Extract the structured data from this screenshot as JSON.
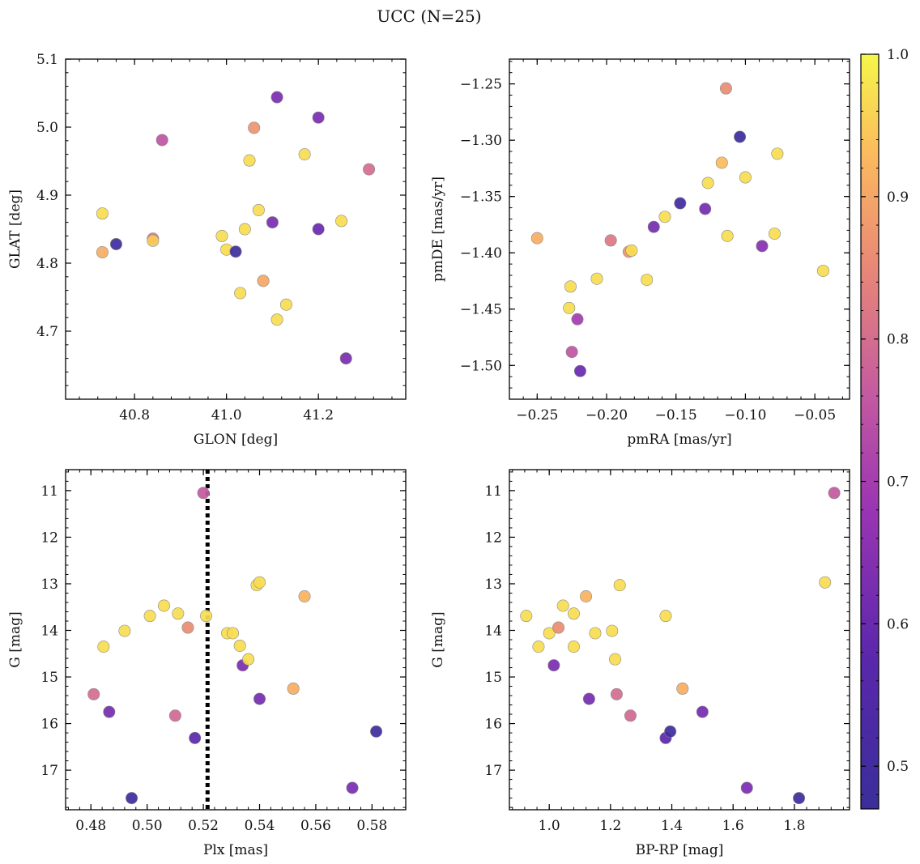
{
  "figure": {
    "title": "UCC (N=25)"
  },
  "colorbar": {
    "range": [
      0.47,
      1.0
    ],
    "ticks": [
      0.5,
      0.6,
      0.7,
      0.8,
      0.9,
      1.0
    ],
    "tick_labels": [
      "0.5",
      "0.6",
      "0.7",
      "0.8",
      "0.9",
      "1.0"
    ],
    "colormap": "plasma"
  },
  "chart_data": [
    {
      "type": "scatter",
      "xlabel": "GLON [deg]",
      "ylabel": "GLAT [deg]",
      "xlim": [
        40.65,
        41.39
      ],
      "ylim": [
        4.6,
        5.1
      ],
      "xticks": [
        40.8,
        41.0,
        41.2
      ],
      "xtick_labels": [
        "40.8",
        "41.0",
        "41.2"
      ],
      "yticks": [
        4.7,
        4.8,
        4.9,
        5.0,
        5.1
      ],
      "ytick_labels": [
        "4.7",
        "4.8",
        "4.9",
        "5.0",
        "5.1"
      ],
      "points": [
        {
          "x": 40.73,
          "y": 4.873,
          "c": 0.97
        },
        {
          "x": 40.73,
          "y": 4.816,
          "c": 0.91
        },
        {
          "x": 40.76,
          "y": 4.828,
          "c": 0.49
        },
        {
          "x": 40.84,
          "y": 4.836,
          "c": 0.82
        },
        {
          "x": 40.84,
          "y": 4.833,
          "c": 0.95
        },
        {
          "x": 40.86,
          "y": 4.981,
          "c": 0.75
        },
        {
          "x": 40.99,
          "y": 4.84,
          "c": 0.97
        },
        {
          "x": 41.0,
          "y": 4.82,
          "c": 0.97
        },
        {
          "x": 41.02,
          "y": 4.817,
          "c": 0.49
        },
        {
          "x": 41.03,
          "y": 4.756,
          "c": 0.97
        },
        {
          "x": 41.04,
          "y": 4.85,
          "c": 0.97
        },
        {
          "x": 41.05,
          "y": 4.951,
          "c": 0.97
        },
        {
          "x": 41.06,
          "y": 4.999,
          "c": 0.87
        },
        {
          "x": 41.07,
          "y": 4.878,
          "c": 0.97
        },
        {
          "x": 41.08,
          "y": 4.774,
          "c": 0.9
        },
        {
          "x": 41.1,
          "y": 4.86,
          "c": 0.63
        },
        {
          "x": 41.11,
          "y": 5.044,
          "c": 0.63
        },
        {
          "x": 41.11,
          "y": 4.717,
          "c": 0.97
        },
        {
          "x": 41.13,
          "y": 4.739,
          "c": 0.97
        },
        {
          "x": 41.17,
          "y": 4.96,
          "c": 0.97
        },
        {
          "x": 41.2,
          "y": 5.014,
          "c": 0.63
        },
        {
          "x": 41.2,
          "y": 4.85,
          "c": 0.6
        },
        {
          "x": 41.25,
          "y": 4.862,
          "c": 0.97
        },
        {
          "x": 41.26,
          "y": 4.66,
          "c": 0.63
        },
        {
          "x": 41.31,
          "y": 4.938,
          "c": 0.8
        }
      ]
    },
    {
      "type": "scatter",
      "xlabel": "pmRA [mas/yr]",
      "ylabel": "pmDE [mas/yr]",
      "xlim": [
        -0.27,
        -0.025
      ],
      "ylim": [
        -1.53,
        -1.228
      ],
      "xticks": [
        -0.25,
        -0.2,
        -0.15,
        -0.1,
        -0.05
      ],
      "xtick_labels": [
        "−0.25",
        "−0.20",
        "−0.15",
        "−0.10",
        "−0.05"
      ],
      "yticks": [
        -1.5,
        -1.45,
        -1.4,
        -1.35,
        -1.3,
        -1.25
      ],
      "ytick_labels": [
        "−1.50",
        "−1.45",
        "−1.40",
        "−1.35",
        "−1.30",
        "−1.25"
      ],
      "points": [
        {
          "x": -0.25,
          "y": -1.387,
          "c": 0.91
        },
        {
          "x": -0.226,
          "y": -1.43,
          "c": 0.97
        },
        {
          "x": -0.227,
          "y": -1.449,
          "c": 0.97
        },
        {
          "x": -0.225,
          "y": -1.488,
          "c": 0.75
        },
        {
          "x": -0.221,
          "y": -1.459,
          "c": 0.7
        },
        {
          "x": -0.219,
          "y": -1.505,
          "c": 0.6
        },
        {
          "x": -0.207,
          "y": -1.423,
          "c": 0.97
        },
        {
          "x": -0.197,
          "y": -1.389,
          "c": 0.82
        },
        {
          "x": -0.184,
          "y": -1.399,
          "c": 0.87
        },
        {
          "x": -0.182,
          "y": -1.398,
          "c": 0.97
        },
        {
          "x": -0.171,
          "y": -1.424,
          "c": 0.97
        },
        {
          "x": -0.166,
          "y": -1.377,
          "c": 0.62
        },
        {
          "x": -0.158,
          "y": -1.368,
          "c": 0.97
        },
        {
          "x": -0.147,
          "y": -1.356,
          "c": 0.5
        },
        {
          "x": -0.129,
          "y": -1.361,
          "c": 0.62
        },
        {
          "x": -0.127,
          "y": -1.338,
          "c": 0.97
        },
        {
          "x": -0.117,
          "y": -1.32,
          "c": 0.93
        },
        {
          "x": -0.114,
          "y": -1.254,
          "c": 0.86
        },
        {
          "x": -0.113,
          "y": -1.385,
          "c": 0.97
        },
        {
          "x": -0.104,
          "y": -1.297,
          "c": 0.48
        },
        {
          "x": -0.1,
          "y": -1.333,
          "c": 0.97
        },
        {
          "x": -0.088,
          "y": -1.394,
          "c": 0.65
        },
        {
          "x": -0.079,
          "y": -1.383,
          "c": 0.97
        },
        {
          "x": -0.077,
          "y": -1.312,
          "c": 0.97
        },
        {
          "x": -0.044,
          "y": -1.416,
          "c": 0.97
        }
      ]
    },
    {
      "type": "scatter",
      "xlabel": "Plx [mas]",
      "ylabel": "G [mag]",
      "xlim": [
        0.471,
        0.592
      ],
      "ylim": [
        17.85,
        10.55
      ],
      "y_inverted": true,
      "xticks": [
        0.48,
        0.5,
        0.52,
        0.54,
        0.56,
        0.58
      ],
      "xtick_labels": [
        "0.48",
        "0.50",
        "0.52",
        "0.54",
        "0.56",
        "0.58"
      ],
      "yticks": [
        11,
        12,
        13,
        14,
        15,
        16,
        17
      ],
      "ytick_labels": [
        "11",
        "12",
        "13",
        "14",
        "15",
        "16",
        "17"
      ],
      "vline": {
        "x": 0.5215,
        "style": "dotted"
      },
      "points": [
        {
          "x": 0.481,
          "y": 15.37,
          "c": 0.8
        },
        {
          "x": 0.4845,
          "y": 14.35,
          "c": 0.97
        },
        {
          "x": 0.4865,
          "y": 15.75,
          "c": 0.62
        },
        {
          "x": 0.492,
          "y": 14.01,
          "c": 0.97
        },
        {
          "x": 0.4945,
          "y": 17.6,
          "c": 0.49
        },
        {
          "x": 0.501,
          "y": 13.69,
          "c": 0.97
        },
        {
          "x": 0.506,
          "y": 13.47,
          "c": 0.97
        },
        {
          "x": 0.51,
          "y": 15.83,
          "c": 0.79
        },
        {
          "x": 0.511,
          "y": 13.64,
          "c": 0.97
        },
        {
          "x": 0.5145,
          "y": 13.94,
          "c": 0.86
        },
        {
          "x": 0.517,
          "y": 16.31,
          "c": 0.58
        },
        {
          "x": 0.52,
          "y": 11.05,
          "c": 0.76
        },
        {
          "x": 0.521,
          "y": 13.69,
          "c": 0.97
        },
        {
          "x": 0.5285,
          "y": 14.06,
          "c": 0.97
        },
        {
          "x": 0.5305,
          "y": 14.06,
          "c": 0.97
        },
        {
          "x": 0.533,
          "y": 14.33,
          "c": 0.97
        },
        {
          "x": 0.534,
          "y": 14.75,
          "c": 0.63
        },
        {
          "x": 0.536,
          "y": 14.62,
          "c": 0.97
        },
        {
          "x": 0.539,
          "y": 13.03,
          "c": 0.97
        },
        {
          "x": 0.54,
          "y": 12.97,
          "c": 0.97
        },
        {
          "x": 0.54,
          "y": 15.47,
          "c": 0.62
        },
        {
          "x": 0.552,
          "y": 15.25,
          "c": 0.91
        },
        {
          "x": 0.556,
          "y": 13.27,
          "c": 0.92
        },
        {
          "x": 0.573,
          "y": 17.38,
          "c": 0.63
        },
        {
          "x": 0.5815,
          "y": 16.17,
          "c": 0.49
        }
      ]
    },
    {
      "type": "scatter",
      "xlabel": "BP-RP [mag]",
      "ylabel": "G [mag]",
      "xlim": [
        0.87,
        1.98
      ],
      "ylim": [
        17.85,
        10.55
      ],
      "y_inverted": true,
      "xticks": [
        1.0,
        1.2,
        1.4,
        1.6,
        1.8
      ],
      "xtick_labels": [
        "1.0",
        "1.2",
        "1.4",
        "1.6",
        "1.8"
      ],
      "yticks": [
        11,
        12,
        13,
        14,
        15,
        16,
        17
      ],
      "ytick_labels": [
        "11",
        "12",
        "13",
        "14",
        "15",
        "16",
        "17"
      ],
      "points": [
        {
          "x": 0.925,
          "y": 13.69,
          "c": 0.97
        },
        {
          "x": 0.965,
          "y": 14.35,
          "c": 0.97
        },
        {
          "x": 1.0,
          "y": 14.06,
          "c": 0.97
        },
        {
          "x": 1.015,
          "y": 14.75,
          "c": 0.63
        },
        {
          "x": 1.03,
          "y": 13.94,
          "c": 0.86
        },
        {
          "x": 1.045,
          "y": 13.47,
          "c": 0.97
        },
        {
          "x": 1.08,
          "y": 13.64,
          "c": 0.97
        },
        {
          "x": 1.08,
          "y": 14.35,
          "c": 0.97
        },
        {
          "x": 1.12,
          "y": 13.27,
          "c": 0.92
        },
        {
          "x": 1.13,
          "y": 15.47,
          "c": 0.62
        },
        {
          "x": 1.15,
          "y": 14.06,
          "c": 0.97
        },
        {
          "x": 1.205,
          "y": 14.01,
          "c": 0.97
        },
        {
          "x": 1.215,
          "y": 14.62,
          "c": 0.97
        },
        {
          "x": 1.22,
          "y": 15.37,
          "c": 0.8
        },
        {
          "x": 1.23,
          "y": 13.03,
          "c": 0.97
        },
        {
          "x": 1.265,
          "y": 15.83,
          "c": 0.79
        },
        {
          "x": 1.38,
          "y": 13.69,
          "c": 0.97
        },
        {
          "x": 1.38,
          "y": 16.31,
          "c": 0.58
        },
        {
          "x": 1.395,
          "y": 16.17,
          "c": 0.49
        },
        {
          "x": 1.435,
          "y": 15.25,
          "c": 0.91
        },
        {
          "x": 1.5,
          "y": 15.75,
          "c": 0.62
        },
        {
          "x": 1.645,
          "y": 17.38,
          "c": 0.63
        },
        {
          "x": 1.815,
          "y": 17.6,
          "c": 0.49
        },
        {
          "x": 1.9,
          "y": 12.97,
          "c": 0.97
        },
        {
          "x": 1.93,
          "y": 11.05,
          "c": 0.76
        }
      ]
    }
  ]
}
